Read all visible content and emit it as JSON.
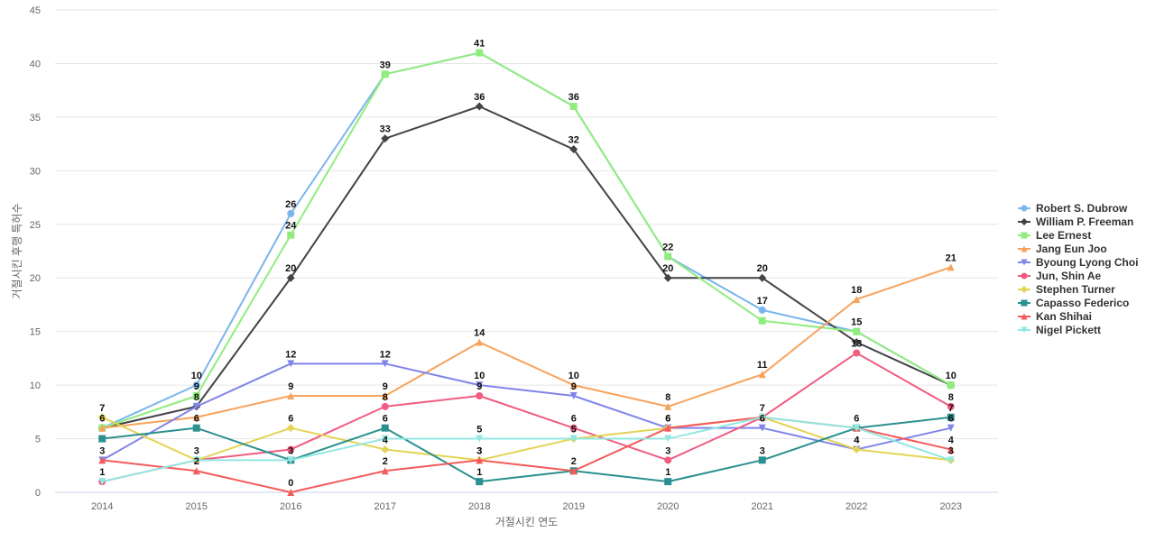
{
  "chart_data": {
    "type": "line",
    "title": "",
    "xlabel": "거절시킨 연도",
    "ylabel": "거절시킨 후행 특허수",
    "ylim": [
      0,
      45
    ],
    "yticks": [
      0,
      5,
      10,
      15,
      20,
      25,
      30,
      35,
      40,
      45
    ],
    "grid": true,
    "legend": "right",
    "categories": [
      "2014",
      "2015",
      "2016",
      "2017",
      "2018",
      "2019",
      "2020",
      "2021",
      "2022",
      "2023"
    ],
    "series": [
      {
        "name": "Robert S. Dubrow",
        "color": "#7cb5ec",
        "marker": "circle",
        "values": [
          6,
          10,
          26,
          39,
          41,
          36,
          22,
          17,
          15,
          10
        ],
        "labels": [
          false,
          true,
          true,
          false,
          false,
          false,
          false,
          true,
          false,
          false
        ]
      },
      {
        "name": "William P. Freeman",
        "color": "#434348",
        "marker": "diamond",
        "values": [
          6,
          8,
          20,
          33,
          36,
          32,
          20,
          20,
          14,
          10
        ],
        "labels": [
          true,
          false,
          true,
          true,
          true,
          true,
          true,
          true,
          false,
          false
        ]
      },
      {
        "name": "Lee Ernest",
        "color": "#90ed7d",
        "marker": "square",
        "values": [
          6,
          9,
          24,
          39,
          41,
          36,
          22,
          16,
          15,
          10
        ],
        "labels": [
          false,
          true,
          true,
          true,
          true,
          true,
          true,
          false,
          true,
          true
        ]
      },
      {
        "name": "Jang Eun Joo",
        "color": "#f7a35c",
        "marker": "triangle",
        "values": [
          6,
          7,
          9,
          9,
          14,
          10,
          8,
          11,
          18,
          21
        ],
        "labels": [
          false,
          false,
          true,
          true,
          true,
          true,
          true,
          true,
          true,
          true
        ]
      },
      {
        "name": "Byoung Lyong Choi",
        "color": "#8085e9",
        "marker": "triangle-down",
        "values": [
          3,
          8,
          12,
          12,
          10,
          9,
          6,
          6,
          4,
          6
        ],
        "labels": [
          false,
          true,
          true,
          true,
          true,
          true,
          true,
          true,
          true,
          true
        ]
      },
      {
        "name": "Jun, Shin Ae",
        "color": "#f15c80",
        "marker": "circle",
        "values": [
          1,
          3,
          4,
          8,
          9,
          6,
          3,
          7,
          13,
          8
        ],
        "labels": [
          false,
          false,
          false,
          true,
          true,
          true,
          true,
          true,
          true,
          true
        ]
      },
      {
        "name": "Stephen Turner",
        "color": "#e4d354",
        "marker": "diamond",
        "values": [
          7,
          3,
          6,
          4,
          3,
          5,
          6,
          7,
          4,
          3
        ],
        "labels": [
          true,
          true,
          true,
          true,
          true,
          true,
          false,
          false,
          true,
          true
        ]
      },
      {
        "name": "Capasso Federico",
        "color": "#2b908f",
        "marker": "square",
        "values": [
          5,
          6,
          3,
          6,
          1,
          2,
          1,
          3,
          6,
          7
        ],
        "labels": [
          false,
          true,
          true,
          true,
          true,
          false,
          true,
          true,
          true,
          true
        ]
      },
      {
        "name": "Kan Shihai",
        "color": "#f45b5b",
        "marker": "triangle",
        "values": [
          3,
          2,
          0,
          2,
          3,
          2,
          6,
          7,
          6,
          4
        ],
        "labels": [
          true,
          true,
          true,
          true,
          true,
          true,
          true,
          false,
          false,
          true
        ]
      },
      {
        "name": "Nigel Pickett",
        "color": "#91e8e1",
        "marker": "triangle-down",
        "values": [
          1,
          3,
          3,
          5,
          5,
          5,
          5,
          7,
          6,
          3
        ],
        "labels": [
          true,
          false,
          false,
          false,
          true,
          false,
          false,
          false,
          false,
          false
        ]
      }
    ]
  }
}
